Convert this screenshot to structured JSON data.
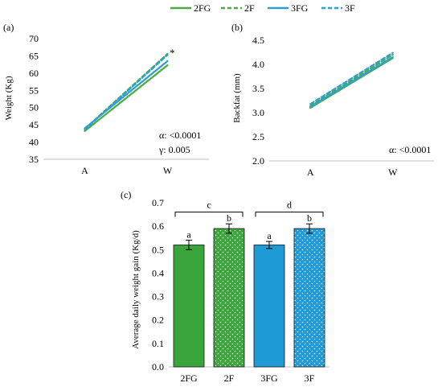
{
  "legend": {
    "items": [
      {
        "label": "2FG",
        "color": "#4aad3f",
        "dash": false
      },
      {
        "label": "2F",
        "color": "#4aad3f",
        "dash": true
      },
      {
        "label": "3FG",
        "color": "#2e9fd6",
        "dash": false
      },
      {
        "label": "3F",
        "color": "#2e9fd6",
        "dash": true
      }
    ]
  },
  "chart_data": [
    {
      "panel": "(a)",
      "type": "line",
      "ylabel": "Weight (Kg)",
      "categories": [
        "A",
        "W"
      ],
      "ylim": [
        35,
        70
      ],
      "yticks": [
        35,
        40,
        45,
        50,
        55,
        60,
        65,
        70
      ],
      "series": [
        {
          "name": "2FG",
          "values": [
            43.2,
            62.3
          ]
        },
        {
          "name": "2F",
          "values": [
            43.8,
            65.6
          ]
        },
        {
          "name": "3FG",
          "values": [
            44.0,
            63.5
          ]
        },
        {
          "name": "3F",
          "values": [
            43.6,
            65.3
          ]
        }
      ],
      "marker": "*",
      "annotations": [
        "α: <0.0001",
        "γ: 0.005"
      ]
    },
    {
      "panel": "(b)",
      "type": "line",
      "ylabel": "Backfat (mm)",
      "categories": [
        "A",
        "W"
      ],
      "ylim": [
        2,
        4.5
      ],
      "yticks": [
        2,
        2.5,
        3,
        3.5,
        4,
        4.5
      ],
      "series": [
        {
          "name": "2FG",
          "values": [
            3.1,
            4.13
          ]
        },
        {
          "name": "2F",
          "values": [
            3.14,
            4.2
          ]
        },
        {
          "name": "3FG",
          "values": [
            3.12,
            4.15
          ]
        },
        {
          "name": "3F",
          "values": [
            3.18,
            4.24
          ]
        }
      ],
      "annotations": [
        "α: <0.0001"
      ]
    },
    {
      "panel": "(c)",
      "type": "bar",
      "ylabel": "Average daily weight gain (Kg/d)",
      "categories": [
        "2FG",
        "2F",
        "3FG",
        "3F"
      ],
      "values": [
        0.52,
        0.59,
        0.52,
        0.59
      ],
      "errors": [
        0.02,
        0.02,
        0.015,
        0.02
      ],
      "letters": [
        "a",
        "b",
        "a",
        "b"
      ],
      "patterned": [
        false,
        true,
        false,
        true
      ],
      "bar_colors": [
        "#3aa53a",
        "#3aa53a",
        "#1e9ad6",
        "#1e9ad6"
      ],
      "ylim": [
        0,
        0.7
      ],
      "yticks": [
        0,
        0.1,
        0.2,
        0.3,
        0.4,
        0.5,
        0.6,
        0.7
      ],
      "brackets": [
        {
          "label": "c",
          "from": 0,
          "to": 1
        },
        {
          "label": "d",
          "from": 2,
          "to": 3
        }
      ]
    }
  ]
}
